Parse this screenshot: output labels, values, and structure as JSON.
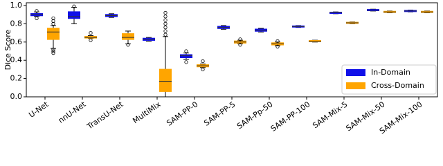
{
  "chart_data": {
    "type": "box",
    "y_label": "Dice Score",
    "categories": [
      "U-Net",
      "nnU-Net",
      "TransU-Net",
      "MultiMix",
      "SAM-PP-0",
      "SAM-PP-5",
      "SAM-Pp-50",
      "SAM-PP-100",
      "SAM-Mix-5",
      "SAM-Mix-50",
      "SAM-Mix-100"
    ],
    "ylim": [
      0,
      1.03
    ],
    "yticks": [
      {
        "value": 0,
        "label": "0.0"
      },
      {
        "value": 0.2,
        "label": "0.2"
      },
      {
        "value": 0.4,
        "label": "0.4"
      },
      {
        "value": 0.6,
        "label": "0.6"
      },
      {
        "value": 0.8,
        "label": "0.8"
      },
      {
        "value": 1,
        "label": "1.0"
      }
    ],
    "legend": "lower right",
    "series": [
      {
        "name": "In-Domain",
        "color": "#1010e8",
        "boxes": [
          {
            "whislo": 0.88,
            "q1": 0.89,
            "med": 0.9,
            "q3": 0.91,
            "whishi": 0.93,
            "fliers": [
              0.86,
              0.94
            ]
          },
          {
            "whislo": 0.8,
            "q1": 0.86,
            "med": 0.88,
            "q3": 0.93,
            "whishi": 0.98,
            "fliers": [
              0.99
            ]
          },
          {
            "whislo": 0.87,
            "q1": 0.88,
            "med": 0.89,
            "q3": 0.9,
            "whishi": 0.91,
            "fliers": []
          },
          {
            "whislo": 0.61,
            "q1": 0.62,
            "med": 0.63,
            "q3": 0.64,
            "whishi": 0.65,
            "fliers": []
          },
          {
            "whislo": 0.41,
            "q1": 0.43,
            "med": 0.45,
            "q3": 0.46,
            "whishi": 0.48,
            "fliers": [
              0.5,
              0.38
            ]
          },
          {
            "whislo": 0.74,
            "q1": 0.75,
            "med": 0.76,
            "q3": 0.77,
            "whishi": 0.78,
            "fliers": []
          },
          {
            "whislo": 0.71,
            "q1": 0.72,
            "med": 0.73,
            "q3": 0.74,
            "whishi": 0.75,
            "fliers": []
          },
          {
            "whislo": 0.76,
            "q1": 0.765,
            "med": 0.77,
            "q3": 0.775,
            "whishi": 0.78,
            "fliers": []
          },
          {
            "whislo": 0.91,
            "q1": 0.915,
            "med": 0.92,
            "q3": 0.925,
            "whishi": 0.93,
            "fliers": []
          },
          {
            "whislo": 0.94,
            "q1": 0.945,
            "med": 0.95,
            "q3": 0.955,
            "whishi": 0.96,
            "fliers": []
          },
          {
            "whislo": 0.93,
            "q1": 0.935,
            "med": 0.94,
            "q3": 0.945,
            "whishi": 0.95,
            "fliers": []
          }
        ]
      },
      {
        "name": "Cross-Domain",
        "color": "#ffa500",
        "boxes": [
          {
            "whislo": 0.53,
            "q1": 0.63,
            "med": 0.71,
            "q3": 0.75,
            "whishi": 0.78,
            "fliers": [
              0.48,
              0.5,
              0.52,
              0.8,
              0.83,
              0.86
            ]
          },
          {
            "whislo": 0.64,
            "q1": 0.645,
            "med": 0.65,
            "q3": 0.66,
            "whishi": 0.67,
            "fliers": [
              0.7,
              0.62
            ]
          },
          {
            "whislo": 0.58,
            "q1": 0.63,
            "med": 0.65,
            "q3": 0.69,
            "whishi": 0.72,
            "fliers": [
              0.57
            ]
          },
          {
            "whislo": 0,
            "q1": 0.06,
            "med": 0.17,
            "q3": 0.3,
            "whishi": 0.66,
            "fliers": [
              0.68,
              0.72,
              0.76,
              0.8,
              0.84,
              0.88,
              0.92
            ]
          },
          {
            "whislo": 0.32,
            "q1": 0.33,
            "med": 0.34,
            "q3": 0.35,
            "whishi": 0.36,
            "fliers": [
              0.39,
              0.3
            ]
          },
          {
            "whislo": 0.58,
            "q1": 0.59,
            "med": 0.6,
            "q3": 0.61,
            "whishi": 0.62,
            "fliers": [
              0.63,
              0.57
            ]
          },
          {
            "whislo": 0.56,
            "q1": 0.57,
            "med": 0.58,
            "q3": 0.59,
            "whishi": 0.6,
            "fliers": [
              0.61,
              0.55
            ]
          },
          {
            "whislo": 0.6,
            "q1": 0.605,
            "med": 0.61,
            "q3": 0.615,
            "whishi": 0.62,
            "fliers": []
          },
          {
            "whislo": 0.8,
            "q1": 0.805,
            "med": 0.81,
            "q3": 0.815,
            "whishi": 0.82,
            "fliers": []
          },
          {
            "whislo": 0.92,
            "q1": 0.925,
            "med": 0.93,
            "q3": 0.935,
            "whishi": 0.94,
            "fliers": []
          },
          {
            "whislo": 0.92,
            "q1": 0.925,
            "med": 0.93,
            "q3": 0.935,
            "whishi": 0.94,
            "fliers": []
          }
        ]
      }
    ]
  }
}
